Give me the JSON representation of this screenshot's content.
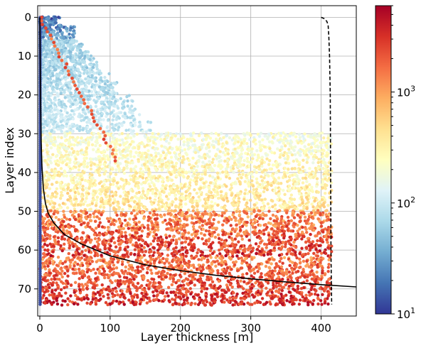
{
  "chart_data": {
    "type": "scatter",
    "title": "",
    "xlabel": "Layer thickness [m]",
    "ylabel": "Layer index",
    "xlim": [
      -3,
      450
    ],
    "ylim": [
      77,
      -3
    ],
    "y_inverted": true,
    "x_ticks": [
      0,
      100,
      200,
      300,
      400
    ],
    "y_ticks": [
      0,
      10,
      20,
      30,
      40,
      50,
      60,
      70
    ],
    "grid": true,
    "colorbar": {
      "scale": "log",
      "range": [
        10,
        6000
      ],
      "ticks": [
        10,
        100,
        1000
      ],
      "tick_labels": [
        "10^1",
        "10^2",
        "10^3"
      ],
      "colormap": "RdYlBu_r",
      "colors": [
        "#313695",
        "#4575b4",
        "#74add1",
        "#abd9e9",
        "#e0f3f8",
        "#ffffbf",
        "#fee090",
        "#fdae61",
        "#f46d43",
        "#d73027",
        "#a50026"
      ]
    },
    "point_density_profile": {
      "description_bands": [
        {
          "layers": [
            0,
            6
          ],
          "thickness_max": 70,
          "value_low": 10,
          "value_high": 60
        },
        {
          "layers": [
            6,
            30
          ],
          "thickness_max": 130,
          "value_low": 40,
          "value_high": 150
        },
        {
          "layers": [
            30,
            50
          ],
          "thickness_max": 415,
          "value_low": 120,
          "value_high": 700
        },
        {
          "layers": [
            50,
            62
          ],
          "thickness_max": 415,
          "value_low": 600,
          "value_high": 6000
        },
        {
          "layers": [
            62,
            74
          ],
          "thickness_max": 415,
          "value_low": 800,
          "value_high": 6000
        }
      ],
      "diagonal_branch": {
        "from": [
          0,
          0
        ],
        "to": [
          110,
          37
        ],
        "value": 2000
      }
    },
    "series": [
      {
        "style": "solid",
        "color": "#000000",
        "x": [
          0,
          1,
          2,
          3,
          5,
          8,
          12,
          20,
          35,
          60,
          100,
          150,
          200,
          250,
          300,
          350,
          400,
          450
        ],
        "y": [
          0,
          20,
          32,
          38,
          44,
          48,
          50.5,
          53,
          56,
          58.5,
          61.5,
          63.8,
          65.3,
          66.5,
          67.4,
          68.2,
          68.9,
          69.5
        ]
      },
      {
        "style": "dashed",
        "color": "#000000",
        "x": [
          400,
          404,
          408,
          410,
          411,
          412,
          413,
          413.5,
          414,
          414.5,
          415
        ],
        "y": [
          0,
          0.3,
          1,
          2,
          5,
          10,
          20,
          40,
          60,
          68,
          74
        ]
      }
    ]
  }
}
